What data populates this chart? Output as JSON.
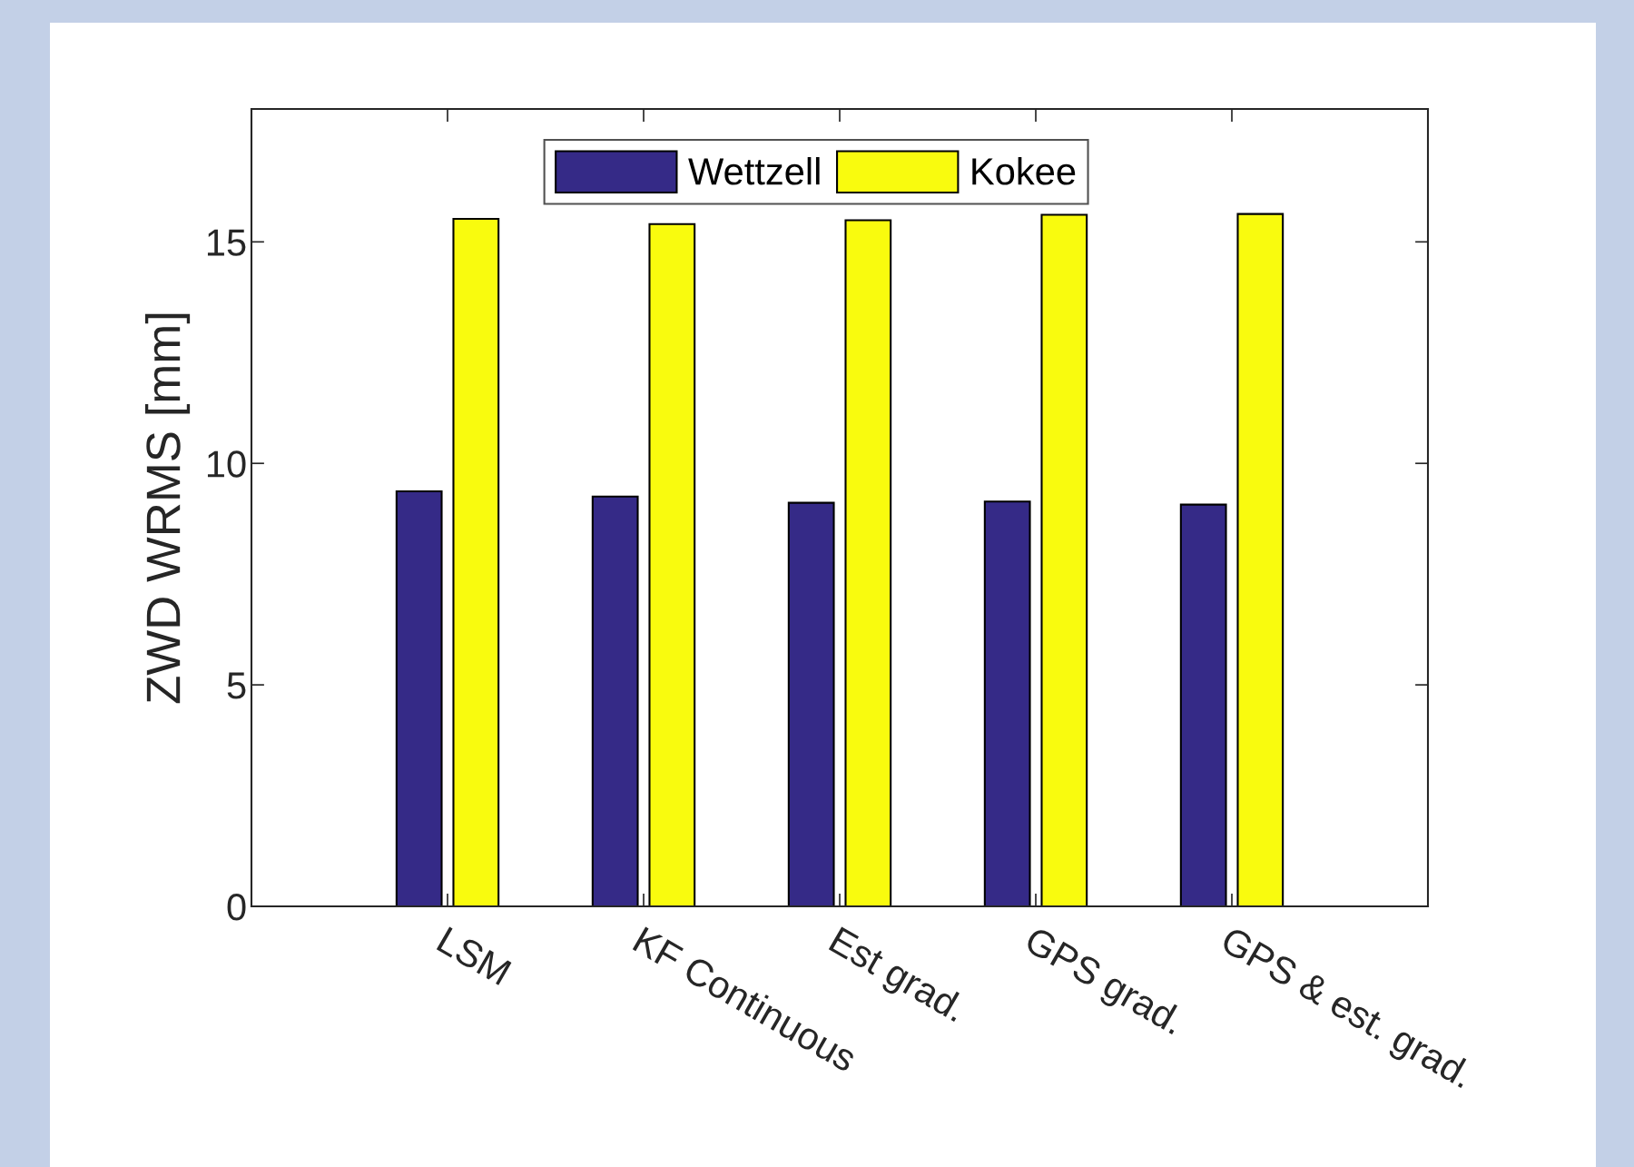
{
  "chart_data": {
    "type": "bar",
    "ylabel": "ZWD WRMS [mm]",
    "categories": [
      "LSM",
      "KF Continuous",
      "Est grad.",
      "GPS grad.",
      "GPS & est. grad."
    ],
    "series": [
      {
        "name": "Wettzell",
        "color": "#352a87",
        "values": [
          9.37,
          9.25,
          9.11,
          9.14,
          9.07
        ]
      },
      {
        "name": "Kokee",
        "color": "#f9fb0e",
        "values": [
          15.52,
          15.4,
          15.49,
          15.61,
          15.63
        ]
      }
    ],
    "ylim": [
      0,
      18
    ],
    "yticks": [
      0,
      5,
      10,
      15
    ],
    "grid": false,
    "legend": "top"
  }
}
